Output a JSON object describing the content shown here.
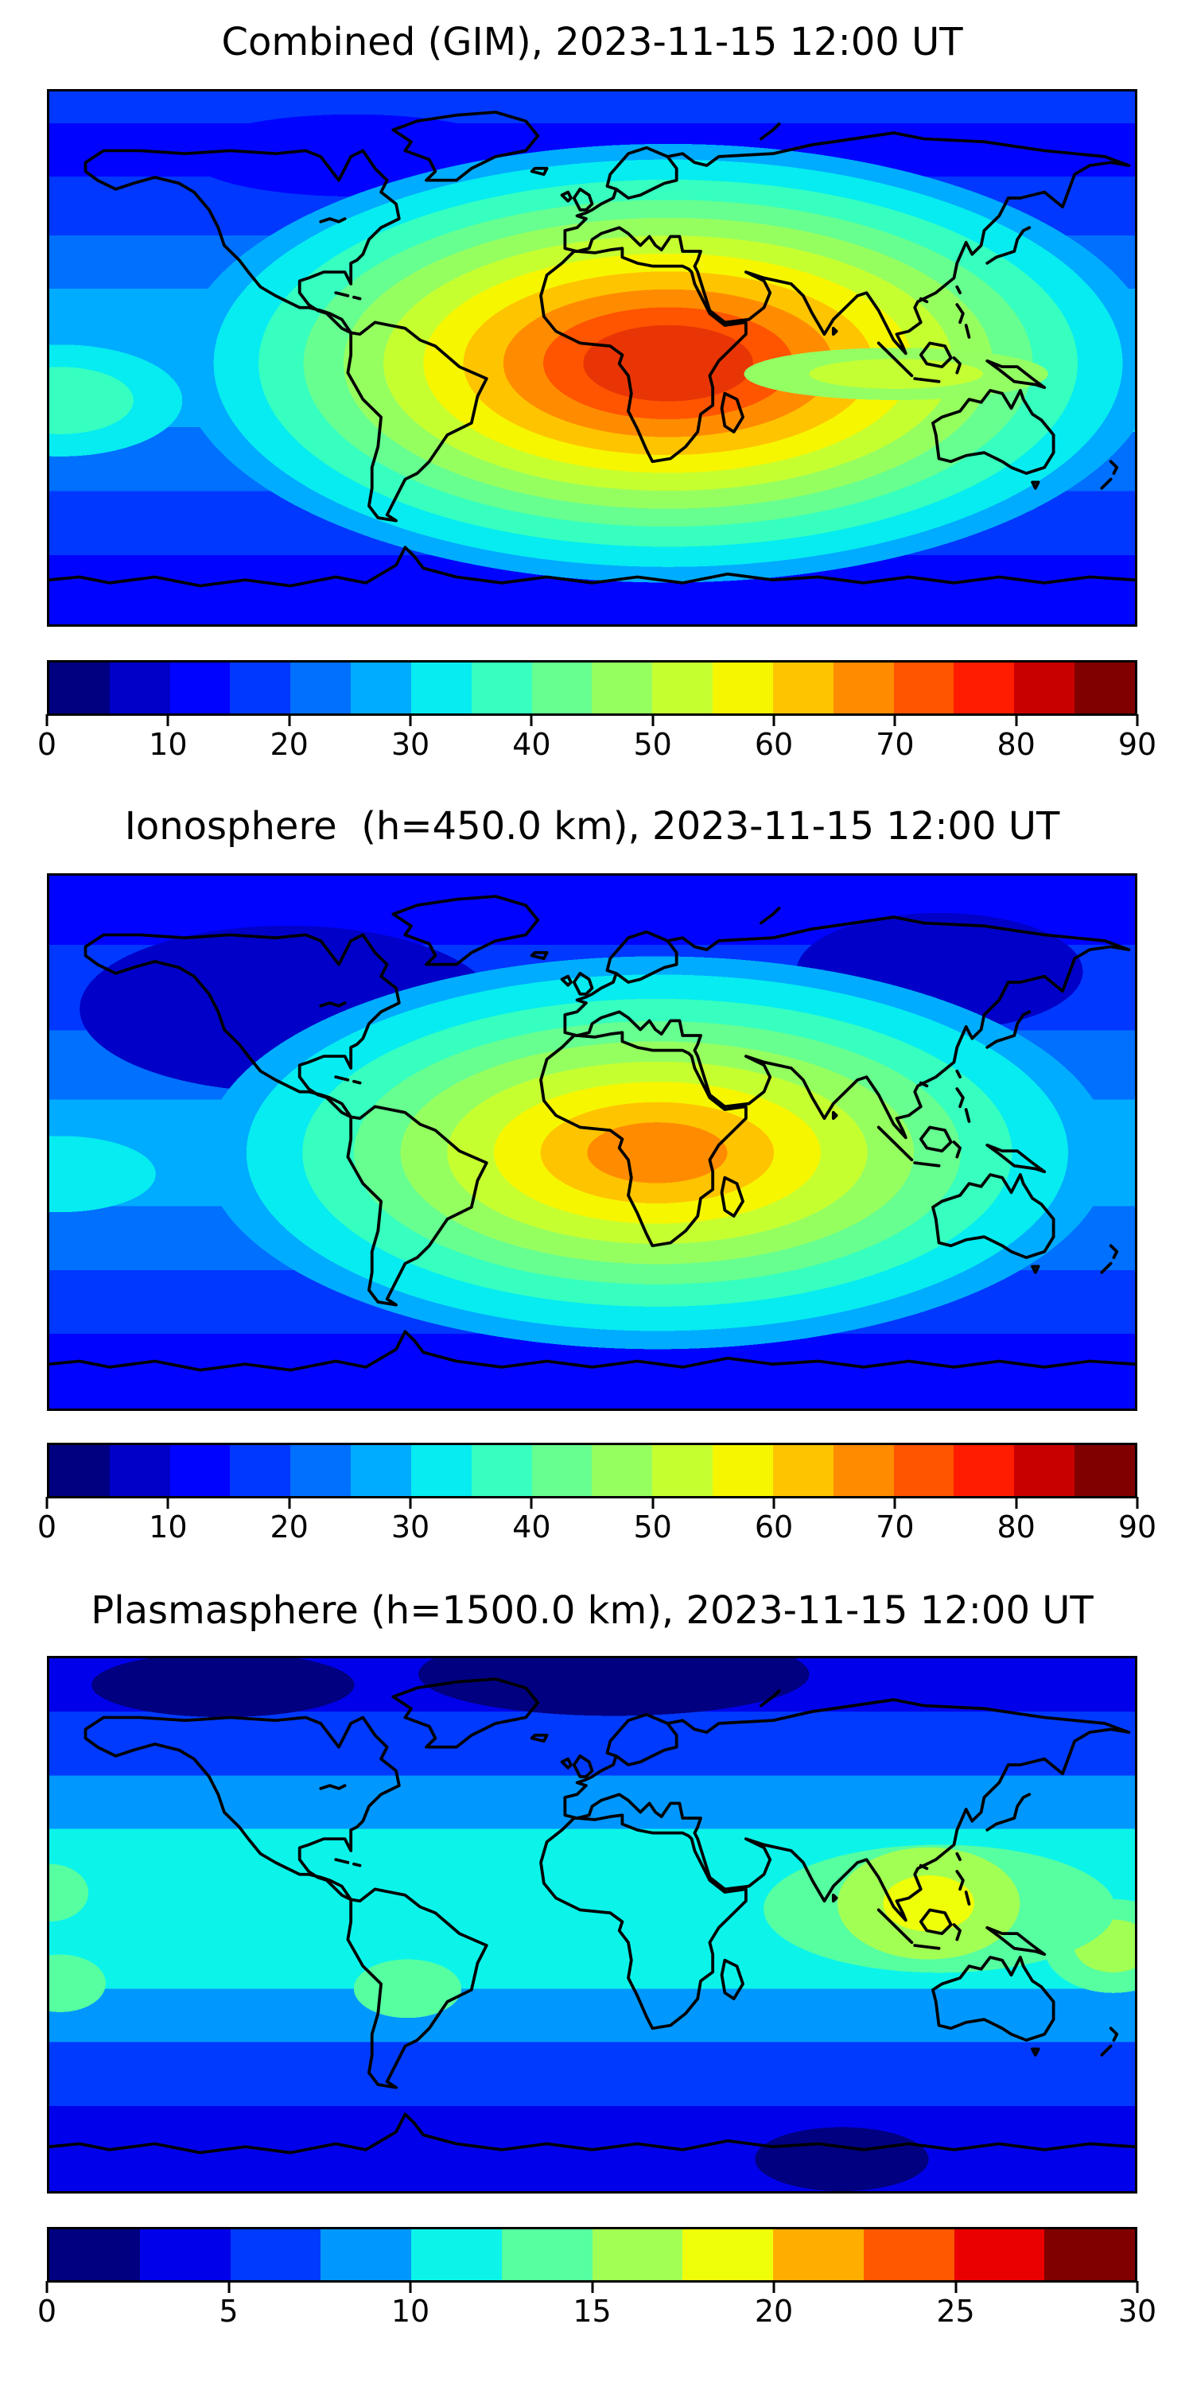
{
  "figure": {
    "background_color": "#ffffff",
    "type": "matplotlib-style stacked contour map figure",
    "shared_datetime": "2023-11-15 12:00 UT"
  },
  "panels": [
    {
      "id": "combined",
      "title": "Combined (GIM), 2023-11-15 12:00 UT",
      "colorbar": {
        "vmin": 0,
        "vmax": 90,
        "tick_labels": [
          "0",
          "10",
          "20",
          "30",
          "40",
          "50",
          "60",
          "70",
          "80",
          "90"
        ],
        "segment_colors": [
          "#000080",
          "#0000c8",
          "#0004ff",
          "#0038ff",
          "#0070ff",
          "#00acff",
          "#06ecf0",
          "#36ffc0",
          "#66ff90",
          "#96ff60",
          "#c6ff30",
          "#f6f600",
          "#ffc400",
          "#ff8c00",
          "#ff5400",
          "#ff1c00",
          "#c80000",
          "#800000"
        ]
      }
    },
    {
      "id": "ionosphere",
      "title": "Ionosphere  (h=450.0 km), 2023-11-15 12:00 UT",
      "colorbar": {
        "vmin": 0,
        "vmax": 90,
        "tick_labels": [
          "0",
          "10",
          "20",
          "30",
          "40",
          "50",
          "60",
          "70",
          "80",
          "90"
        ],
        "segment_colors": [
          "#000080",
          "#0000c8",
          "#0004ff",
          "#0038ff",
          "#0070ff",
          "#00acff",
          "#06ecf0",
          "#36ffc0",
          "#66ff90",
          "#96ff60",
          "#c6ff30",
          "#f6f600",
          "#ffc400",
          "#ff8c00",
          "#ff5400",
          "#ff1c00",
          "#c80000",
          "#800000"
        ]
      }
    },
    {
      "id": "plasmasphere",
      "title": "Plasmasphere (h=1500.0 km), 2023-11-15 12:00 UT",
      "colorbar": {
        "vmin": 0,
        "vmax": 30,
        "tick_labels": [
          "0",
          "5",
          "10",
          "15",
          "20",
          "25",
          "30"
        ],
        "segment_colors": [
          "#000080",
          "#0000ea",
          "#003aff",
          "#0098ff",
          "#0cf4ea",
          "#56ffa0",
          "#a2ff54",
          "#eeff09",
          "#ffae00",
          "#ff5800",
          "#ea0000",
          "#800000"
        ]
      }
    }
  ],
  "chart_data": [
    {
      "type": "heatmap",
      "subtype": "filled-contour global TEC map with black coastlines",
      "title": "Combined (GIM), 2023-11-15 12:00 UT",
      "datetime": "2023-11-15 12:00 UT",
      "projection": "equirectangular",
      "x_range_lon_deg": [
        -180,
        180
      ],
      "y_range_lat_deg": [
        -90,
        90
      ],
      "axes_tick_labels": "none (frame only)",
      "colormap": "jet",
      "contour_levels": {
        "min": 0,
        "max": 90,
        "step": 5
      },
      "colorbar_ticks": [
        0,
        10,
        20,
        30,
        40,
        50,
        60,
        70,
        80,
        90
      ],
      "legend_position": "horizontal colorbar below map",
      "features": [
        {
          "desc": "primary equatorial TEC maximum over central/eastern Africa",
          "lon": 30,
          "lat": -5,
          "value": 85
        },
        {
          "desc": "broad enhancement ring (orange/yellow) spanning Africa, Arabia and the Indian Ocean",
          "lon": 60,
          "lat": 0,
          "value": 65
        },
        {
          "desc": "yellow-green tongue extending east to Indonesia",
          "lon": 105,
          "lat": 0,
          "value": 50
        },
        {
          "desc": "ridge extending southwest over the south Atlantic toward Brazil",
          "lon": -35,
          "lat": -15,
          "value": 45
        },
        {
          "desc": "equatorial mid-Pacific moderate band",
          "lon": -150,
          "lat": 0,
          "value": 30
        },
        {
          "desc": "minimum over northern Canada / Arctic",
          "lon": -100,
          "lat": 70,
          "value": 8
        },
        {
          "desc": "minimum band along Antarctic latitudes",
          "lon": 0,
          "lat": -75,
          "value": 12
        }
      ]
    },
    {
      "type": "heatmap",
      "subtype": "filled-contour global TEC map with black coastlines",
      "title": "Ionosphere  (h=450.0 km), 2023-11-15 12:00 UT",
      "datetime": "2023-11-15 12:00 UT",
      "height_km": 450.0,
      "projection": "equirectangular",
      "x_range_lon_deg": [
        -180,
        180
      ],
      "y_range_lat_deg": [
        -90,
        90
      ],
      "axes_tick_labels": "none (frame only)",
      "colormap": "jet",
      "contour_levels": {
        "min": 0,
        "max": 90,
        "step": 5
      },
      "colorbar_ticks": [
        0,
        10,
        20,
        30,
        40,
        50,
        60,
        70,
        80,
        90
      ],
      "legend_position": "horizontal colorbar below map",
      "features": [
        {
          "desc": "primary maximum (orange core) over central Africa / west Indian Ocean",
          "lon": 25,
          "lat": -5,
          "value": 65
        },
        {
          "desc": "yellow ring covering north and southern Africa and Arabia",
          "lon": 30,
          "lat": 0,
          "value": 55
        },
        {
          "desc": "green/cyan ring over south Atlantic and south Asia",
          "lon": -20,
          "lat": -15,
          "value": 40
        },
        {
          "desc": "dark minimum over North America / north Pacific",
          "lon": -110,
          "lat": 55,
          "value": 8
        },
        {
          "desc": "dark minimum over northeast Siberia / Japan sector",
          "lon": 135,
          "lat": 50,
          "value": 8
        },
        {
          "desc": "low band along southern high latitudes",
          "lon": 0,
          "lat": -70,
          "value": 10
        }
      ]
    },
    {
      "type": "heatmap",
      "subtype": "filled-contour global TEC map with black coastlines",
      "title": "Plasmasphere (h=1500.0 km), 2023-11-15 12:00 UT",
      "datetime": "2023-11-15 12:00 UT",
      "height_km": 1500.0,
      "projection": "equirectangular",
      "x_range_lon_deg": [
        -180,
        180
      ],
      "y_range_lat_deg": [
        -90,
        90
      ],
      "axes_tick_labels": "none (frame only)",
      "colormap": "jet",
      "contour_levels": {
        "min": 0,
        "max": 30,
        "step": 2.5
      },
      "colorbar_ticks": [
        0,
        5,
        10,
        15,
        20,
        25,
        30
      ],
      "legend_position": "horizontal colorbar below map",
      "features": [
        {
          "desc": "yellow maximum over Malaysia / Borneo (southeast Asia)",
          "lon": 113,
          "lat": 5,
          "value": 21
        },
        {
          "desc": "secondary yellow-green patch near the date line, south Pacific",
          "lon": 175,
          "lat": -12,
          "value": 18
        },
        {
          "desc": "green patch east of Brazil",
          "lon": -35,
          "lat": -25,
          "value": 15
        },
        {
          "desc": "green patches at far west edge of equatorial Pacific",
          "lon": -178,
          "lat": 0,
          "value": 15
        },
        {
          "desc": "continuous cyan equatorial belt across all longitudes",
          "lon": 0,
          "lat": 0,
          "value": 12
        },
        {
          "desc": "dark navy minimum over Arctic Europe",
          "lon": 10,
          "lat": 75,
          "value": 3
        },
        {
          "desc": "dark navy minimum south of Australia",
          "lon": 135,
          "lat": -60,
          "value": 3
        }
      ]
    }
  ]
}
